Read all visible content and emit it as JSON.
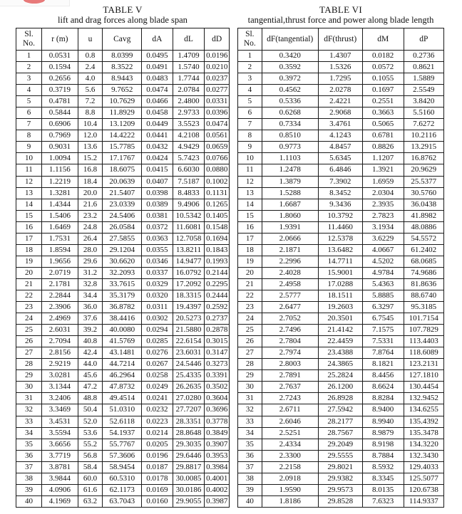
{
  "logo_fragment": {
    "box_color": "#fbfbfb",
    "border_color": "#ececec",
    "ellipse_color": "#e87a7a",
    "ellipse_shade": "#d75f5f"
  },
  "table_v": {
    "title": "TABLE V",
    "subtitle": "lift and drag forces along blade span",
    "headers": [
      "Sl.\nNo.",
      "r (m)",
      "u",
      "Cavg",
      "dA",
      "dL",
      "dD"
    ],
    "rows": [
      [
        "1",
        "0.0531",
        "0.8",
        "8.0399",
        "0.0495",
        "1.4709",
        "0.0196"
      ],
      [
        "2",
        "0.1594",
        "2.4",
        "8.3522",
        "0.0491",
        "1.5740",
        "0.0210"
      ],
      [
        "3",
        "0.2656",
        "4.0",
        "8.9443",
        "0.0483",
        "1.7744",
        "0.0237"
      ],
      [
        "4",
        "0.3719",
        "5.6",
        "9.7652",
        "0.0474",
        "2.0784",
        "0.0277"
      ],
      [
        "5",
        "0.4781",
        "7.2",
        "10.7629",
        "0.0466",
        "2.4800",
        "0.0331"
      ],
      [
        "6",
        "0.5844",
        "8.8",
        "11.8929",
        "0.0458",
        "2.9733",
        "0.0396"
      ],
      [
        "7",
        "0.6906",
        "10.4",
        "13.1209",
        "0.0449",
        "3.5523",
        "0.0474"
      ],
      [
        "8",
        "0.7969",
        "12.0",
        "14.4222",
        "0.0441",
        "4.2108",
        "0.0561"
      ],
      [
        "9",
        "0.9031",
        "13.6",
        "15.7785",
        "0.0432",
        "4.9429",
        "0.0659"
      ],
      [
        "10",
        "1.0094",
        "15.2",
        "17.1767",
        "0.0424",
        "5.7423",
        "0.0766"
      ],
      [
        "11",
        "1.1156",
        "16.8",
        "18.6075",
        "0.0415",
        "6.6030",
        "0.0880"
      ],
      [
        "12",
        "1.2219",
        "18.4",
        "20.0639",
        "0.0407",
        "7.5187",
        "0.1002"
      ],
      [
        "13",
        "1.3281",
        "20.0",
        "21.5407",
        "0.0398",
        "8.4833",
        "0.1131"
      ],
      [
        "14",
        "1.4344",
        "21.6",
        "23.0339",
        "0.0389",
        "9.4906",
        "0.1265"
      ],
      [
        "15",
        "1.5406",
        "23.2",
        "24.5406",
        "0.0381",
        "10.5342",
        "0.1405"
      ],
      [
        "16",
        "1.6469",
        "24.8",
        "26.0584",
        "0.0372",
        "11.6081",
        "0.1548"
      ],
      [
        "17",
        "1.7531",
        "26.4",
        "27.5855",
        "0.0363",
        "12.7058",
        "0.1694"
      ],
      [
        "18",
        "1.8594",
        "28.0",
        "29.1204",
        "0.0355",
        "13.8211",
        "0.1843"
      ],
      [
        "19",
        "1.9656",
        "29.6",
        "30.6620",
        "0.0346",
        "14.9477",
        "0.1993"
      ],
      [
        "20",
        "2.0719",
        "31.2",
        "32.2093",
        "0.0337",
        "16.0792",
        "0.2144"
      ],
      [
        "21",
        "2.1781",
        "32.8",
        "33.7615",
        "0.0329",
        "17.2092",
        "0.2295"
      ],
      [
        "22",
        "2.2844",
        "34.4",
        "35.3179",
        "0.0320",
        "18.3315",
        "0.2444"
      ],
      [
        "23",
        "2.3906",
        "36.0",
        "36.8782",
        "0.0311",
        "19.4397",
        "0.2592"
      ],
      [
        "24",
        "2.4969",
        "37.6",
        "38.4416",
        "0.0302",
        "20.5273",
        "0.2737"
      ],
      [
        "25",
        "2.6031",
        "39.2",
        "40.0080",
        "0.0294",
        "21.5880",
        "0.2878"
      ],
      [
        "26",
        "2.7094",
        "40.8",
        "41.5769",
        "0.0285",
        "22.6154",
        "0.3015"
      ],
      [
        "27",
        "2.8156",
        "42.4",
        "43.1481",
        "0.0276",
        "23.6031",
        "0.3147"
      ],
      [
        "28",
        "2.9219",
        "44.0",
        "44.7214",
        "0.0267",
        "24.5446",
        "0.3273"
      ],
      [
        "29",
        "3.0281",
        "45.6",
        "46.2964",
        "0.0258",
        "25.4335",
        "0.3391"
      ],
      [
        "30",
        "3.1344",
        "47.2",
        "47.8732",
        "0.0249",
        "26.2635",
        "0.3502"
      ],
      [
        "31",
        "3.2406",
        "48.8",
        "49.4514",
        "0.0241",
        "27.0280",
        "0.3604"
      ],
      [
        "32",
        "3.3469",
        "50.4",
        "51.0310",
        "0.0232",
        "27.7207",
        "0.3696"
      ],
      [
        "33",
        "3.4531",
        "52.0",
        "52.6118",
        "0.0223",
        "28.3351",
        "0.3778"
      ],
      [
        "34",
        "3.5594",
        "53.6",
        "54.1937",
        "0.0214",
        "28.8648",
        "0.3849"
      ],
      [
        "35",
        "3.6656",
        "55.2",
        "55.7767",
        "0.0205",
        "29.3035",
        "0.3907"
      ],
      [
        "36",
        "3.7719",
        "56.8",
        "57.3606",
        "0.0196",
        "29.6446",
        "0.3953"
      ],
      [
        "37",
        "3.8781",
        "58.4",
        "58.9454",
        "0.0187",
        "29.8817",
        "0.3984"
      ],
      [
        "38",
        "3.9844",
        "60.0",
        "60.5310",
        "0.0178",
        "30.0085",
        "0.4001"
      ],
      [
        "39",
        "4.0906",
        "61.6",
        "62.1173",
        "0.0169",
        "30.0186",
        "0.4002"
      ],
      [
        "40",
        "4.1969",
        "63.2",
        "63.7043",
        "0.0160",
        "29.9055",
        "0.3987"
      ]
    ]
  },
  "table_vi": {
    "title": "TABLE VI",
    "subtitle": "tangential,thrust force and power along blade length",
    "headers": [
      "Sl.\nNo.",
      "dF(tangential)",
      "dF(thrust)",
      "dM",
      "dP"
    ],
    "rows": [
      [
        "1",
        "0.3420",
        "1.4307",
        "0.0182",
        "0.2736"
      ],
      [
        "2",
        "0.3592",
        "1.5326",
        "0.0572",
        "0.8621"
      ],
      [
        "3",
        "0.3972",
        "1.7295",
        "0.1055",
        "1.5889"
      ],
      [
        "4",
        "0.4562",
        "2.0278",
        "0.1697",
        "2.5549"
      ],
      [
        "5",
        "0.5336",
        "2.4221",
        "0.2551",
        "3.8420"
      ],
      [
        "6",
        "0.6268",
        "2.9068",
        "0.3663",
        "5.5160"
      ],
      [
        "7",
        "0.7334",
        "3.4761",
        "0.5065",
        "7.6272"
      ],
      [
        "8",
        "0.8510",
        "4.1243",
        "0.6781",
        "10.2116"
      ],
      [
        "9",
        "0.9773",
        "4.8457",
        "0.8826",
        "13.2915"
      ],
      [
        "10",
        "1.1103",
        "5.6345",
        "1.1207",
        "16.8762"
      ],
      [
        "11",
        "1.2478",
        "6.4846",
        "1.3921",
        "20.9629"
      ],
      [
        "12",
        "1.3879",
        "7.3902",
        "1.6959",
        "25.5377"
      ],
      [
        "13",
        "1.5288",
        "8.3452",
        "2.0304",
        "30.5760"
      ],
      [
        "14",
        "1.6687",
        "9.3436",
        "2.3935",
        "36.0438"
      ],
      [
        "15",
        "1.8060",
        "10.3792",
        "2.7823",
        "41.8982"
      ],
      [
        "16",
        "1.9391",
        "11.4460",
        "3.1934",
        "48.0886"
      ],
      [
        "17",
        "2.0666",
        "12.5378",
        "3.6229",
        "54.5572"
      ],
      [
        "18",
        "2.1871",
        "13.6482",
        "4.0667",
        "61.2402"
      ],
      [
        "19",
        "2.2996",
        "14.7711",
        "4.5202",
        "68.0685"
      ],
      [
        "20",
        "2.4028",
        "15.9001",
        "4.9784",
        "74.9686"
      ],
      [
        "21",
        "2.4958",
        "17.0288",
        "5.4363",
        "81.8636"
      ],
      [
        "22",
        "2.5777",
        "18.1511",
        "5.8885",
        "88.6740"
      ],
      [
        "23",
        "2.6477",
        "19.2603",
        "6.3297",
        "95.3185"
      ],
      [
        "24",
        "2.7052",
        "20.3501",
        "6.7545",
        "101.7154"
      ],
      [
        "25",
        "2.7496",
        "21.4142",
        "7.1575",
        "107.7829"
      ],
      [
        "26",
        "2.7804",
        "22.4459",
        "7.5331",
        "113.4403"
      ],
      [
        "27",
        "2.7974",
        "23.4388",
        "7.8764",
        "118.6089"
      ],
      [
        "28",
        "2.8003",
        "24.3865",
        "8.1821",
        "123.2131"
      ],
      [
        "29",
        "2.7891",
        "25.2824",
        "8.4456",
        "127.1810"
      ],
      [
        "30",
        "2.7637",
        "26.1200",
        "8.6624",
        "130.4454"
      ],
      [
        "31",
        "2.7243",
        "26.8928",
        "8.8284",
        "132.9452"
      ],
      [
        "32",
        "2.6711",
        "27.5942",
        "8.9400",
        "134.6255"
      ],
      [
        "33",
        "2.6046",
        "28.2177",
        "8.9940",
        "135.4392"
      ],
      [
        "34",
        "2.5251",
        "28.7567",
        "8.9879",
        "135.3478"
      ],
      [
        "35",
        "2.4334",
        "29.2049",
        "8.9198",
        "134.3220"
      ],
      [
        "36",
        "2.3300",
        "29.5555",
        "8.7884",
        "132.3430"
      ],
      [
        "37",
        "2.2158",
        "29.8021",
        "8.5932",
        "129.4033"
      ],
      [
        "38",
        "2.0918",
        "29.9382",
        "8.3345",
        "125.5077"
      ],
      [
        "39",
        "1.9590",
        "29.9573",
        "8.0135",
        "120.6738"
      ],
      [
        "40",
        "1.8186",
        "29.8528",
        "7.6323",
        "114.9337"
      ]
    ]
  }
}
